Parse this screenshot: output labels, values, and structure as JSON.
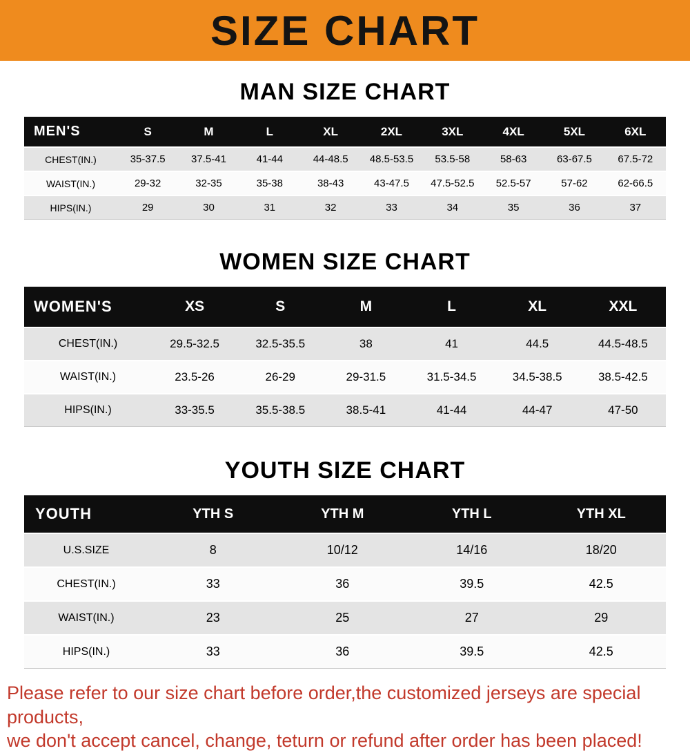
{
  "banner": {
    "title": "SIZE CHART",
    "bg_color": "#ef8b1e",
    "text_color": "#141414"
  },
  "sections": [
    {
      "heading": "MAN SIZE CHART",
      "table": {
        "header_label": "MEN'S",
        "columns": [
          "S",
          "M",
          "L",
          "XL",
          "2XL",
          "3XL",
          "4XL",
          "5XL",
          "6XL"
        ],
        "rows": [
          {
            "label": "CHEST(IN.)",
            "values": [
              "35-37.5",
              "37.5-41",
              "41-44",
              "44-48.5",
              "48.5-53.5",
              "53.5-58",
              "58-63",
              "63-67.5",
              "67.5-72"
            ]
          },
          {
            "label": "WAIST(IN.)",
            "values": [
              "29-32",
              "32-35",
              "35-38",
              "38-43",
              "43-47.5",
              "47.5-52.5",
              "52.5-57",
              "57-62",
              "62-66.5"
            ]
          },
          {
            "label": "HIPS(IN.)",
            "values": [
              "29",
              "30",
              "31",
              "32",
              "33",
              "34",
              "35",
              "36",
              "37"
            ]
          }
        ]
      }
    },
    {
      "heading": "WOMEN SIZE CHART",
      "table": {
        "header_label": "WOMEN'S",
        "columns": [
          "XS",
          "S",
          "M",
          "L",
          "XL",
          "XXL"
        ],
        "rows": [
          {
            "label": "CHEST(IN.)",
            "values": [
              "29.5-32.5",
              "32.5-35.5",
              "38",
              "41",
              "44.5",
              "44.5-48.5"
            ]
          },
          {
            "label": "WAIST(IN.)",
            "values": [
              "23.5-26",
              "26-29",
              "29-31.5",
              "31.5-34.5",
              "34.5-38.5",
              "38.5-42.5"
            ]
          },
          {
            "label": "HIPS(IN.)",
            "values": [
              "33-35.5",
              "35.5-38.5",
              "38.5-41",
              "41-44",
              "44-47",
              "47-50"
            ]
          }
        ]
      }
    },
    {
      "heading": "YOUTH SIZE CHART",
      "table": {
        "header_label": "YOUTH",
        "columns": [
          "YTH S",
          "YTH M",
          "YTH L",
          "YTH XL"
        ],
        "rows": [
          {
            "label": "U.S.SIZE",
            "values": [
              "8",
              "10/12",
              "14/16",
              "18/20"
            ]
          },
          {
            "label": "CHEST(IN.)",
            "values": [
              "33",
              "36",
              "39.5",
              "42.5"
            ]
          },
          {
            "label": "WAIST(IN.)",
            "values": [
              "23",
              "25",
              "27",
              "29"
            ]
          },
          {
            "label": "HIPS(IN.)",
            "values": [
              "33",
              "36",
              "39.5",
              "42.5"
            ]
          }
        ]
      }
    }
  ],
  "footer": {
    "text_color": "#c2392b",
    "lines": [
      "Please refer to our size chart before order,the customized jerseys are special products,",
      "we don't accept cancel, change, teturn or refund after order has been placed!"
    ]
  }
}
